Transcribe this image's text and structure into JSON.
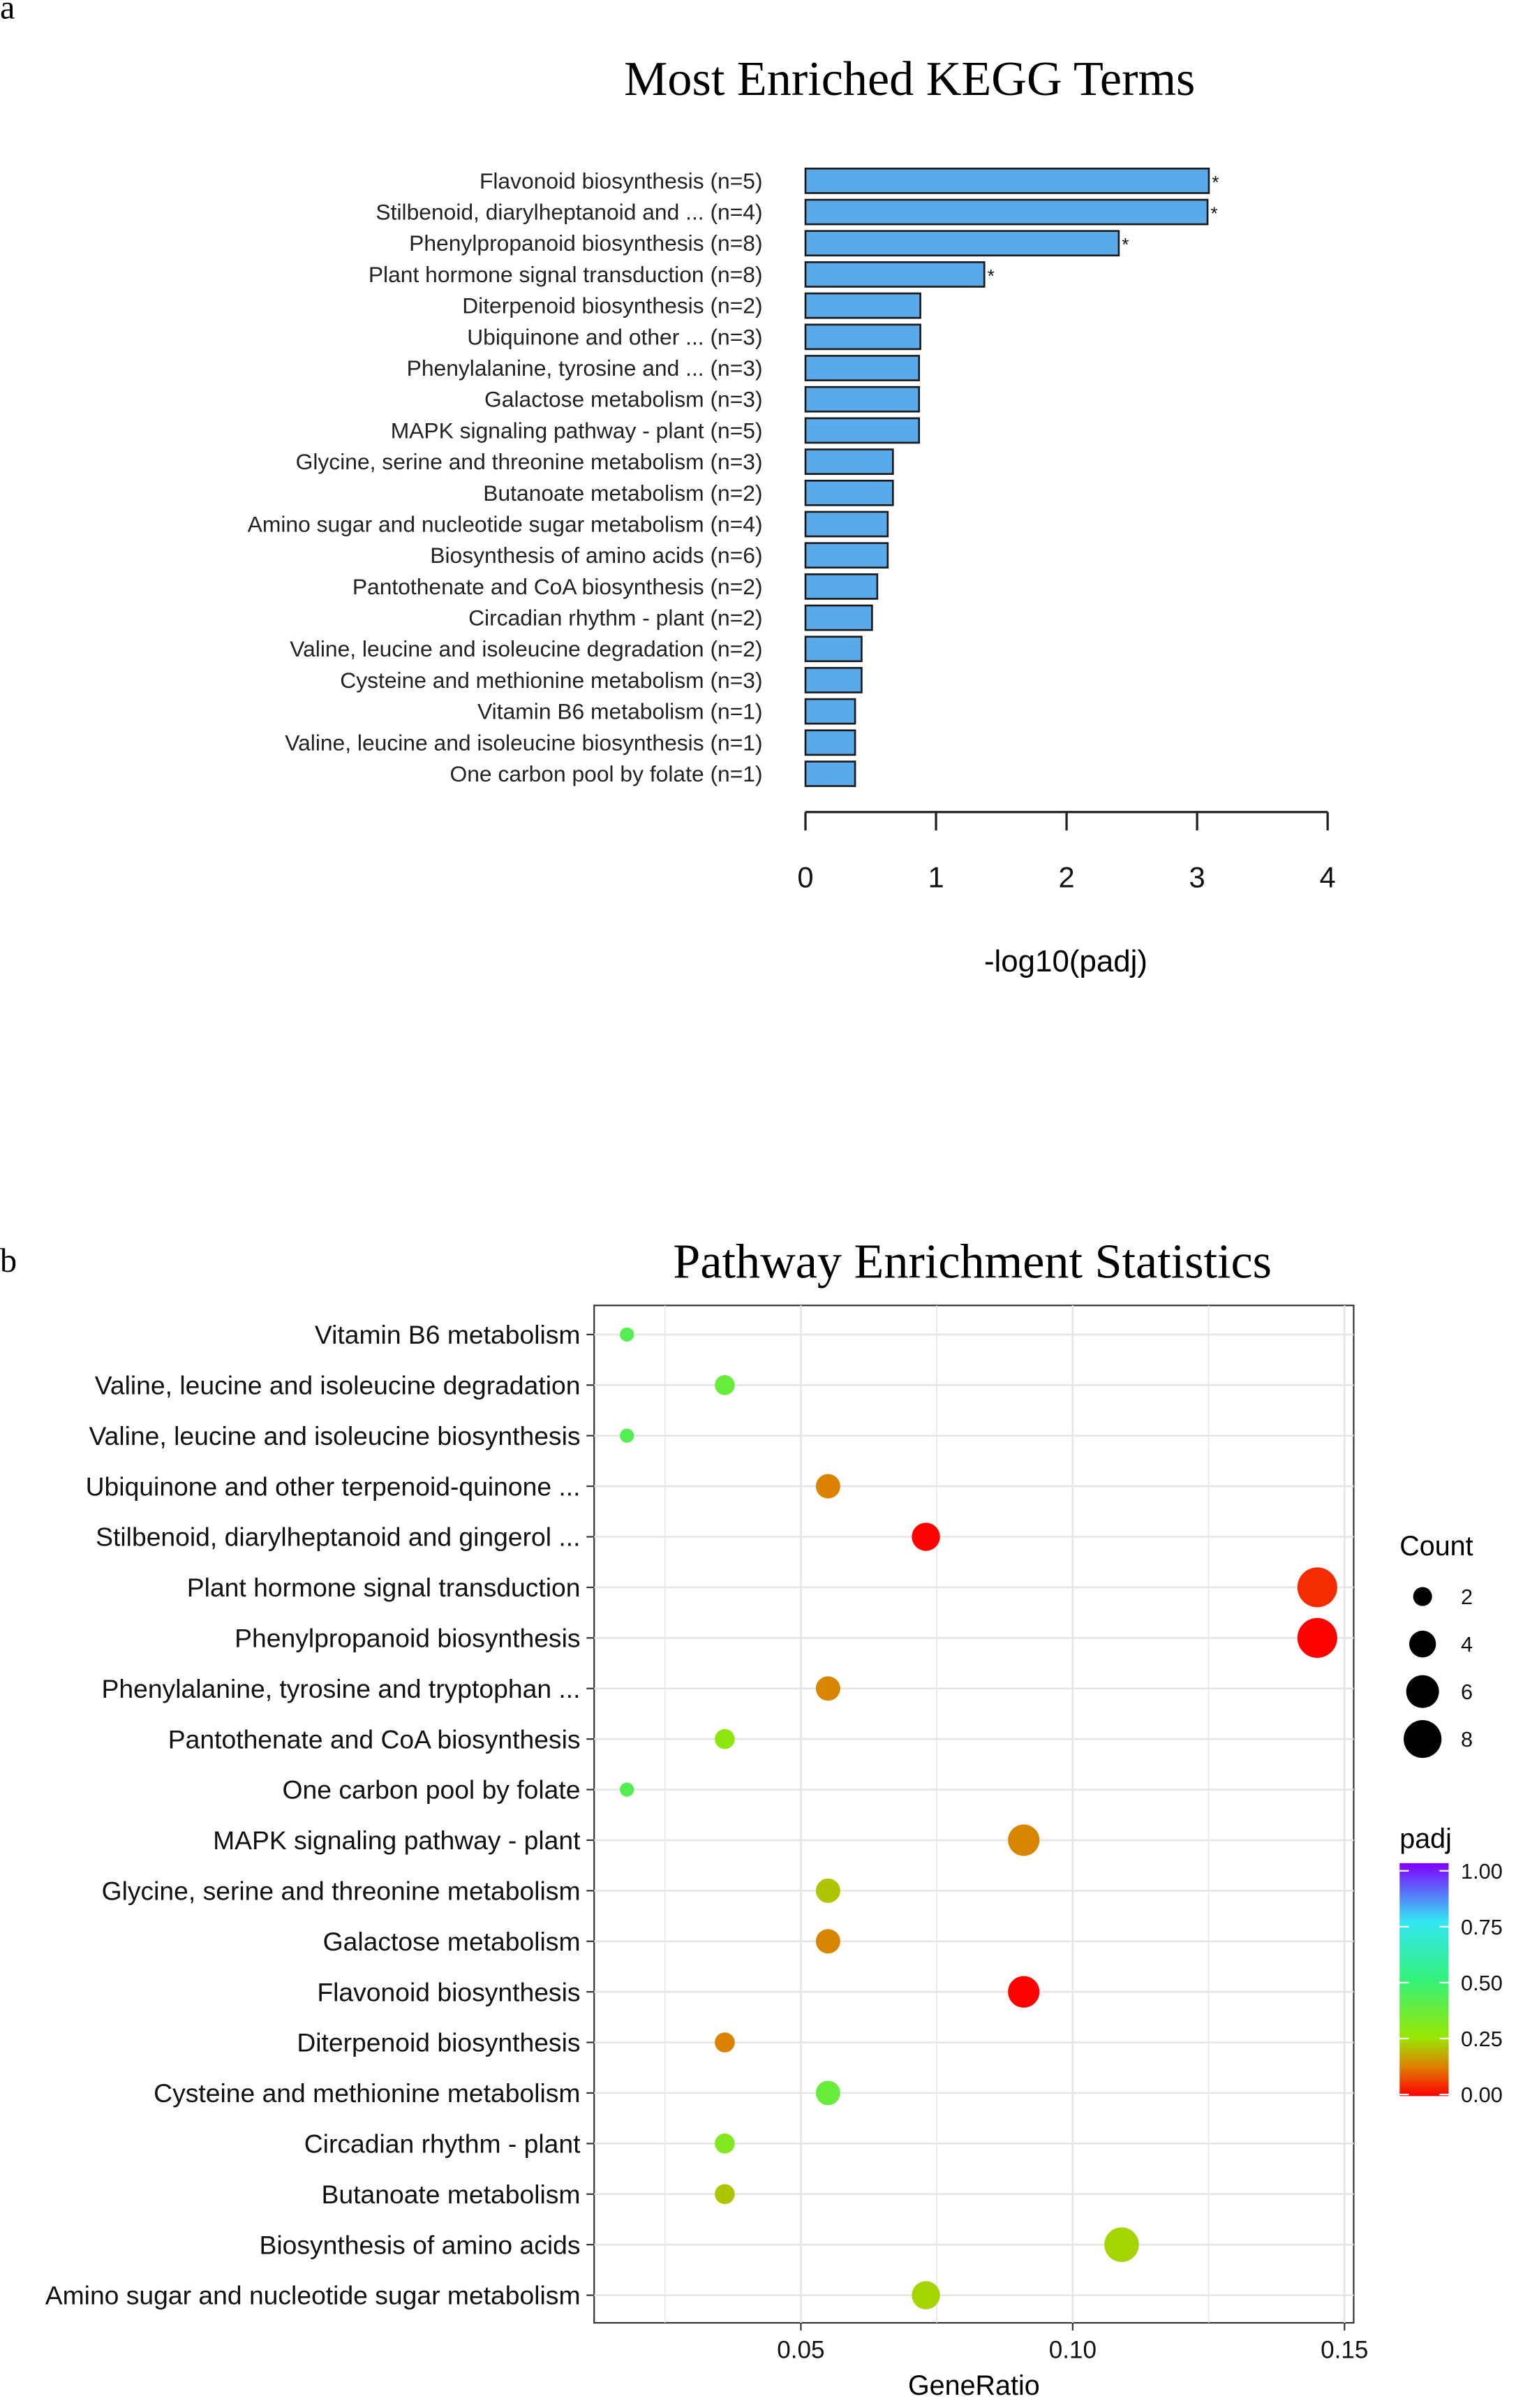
{
  "chart_data": [
    {
      "type": "bar",
      "panel_label": "a",
      "title": "Most Enriched KEGG Terms",
      "xlabel": "-log10(padj)",
      "ylabel": "",
      "xlim": [
        0,
        4
      ],
      "xticks": [
        "0",
        "1",
        "2",
        "3",
        "4"
      ],
      "orientation": "horizontal",
      "bar_color": "#5aa9ea",
      "categories": [
        "Flavonoid biosynthesis (n=5)",
        "Stilbenoid, diarylheptanoid and ... (n=4)",
        "Phenylpropanoid biosynthesis (n=8)",
        "Plant hormone signal transduction (n=8)",
        "Diterpenoid biosynthesis (n=2)",
        "Ubiquinone and other ... (n=3)",
        "Phenylalanine, tyrosine and ... (n=3)",
        "Galactose metabolism (n=3)",
        "MAPK signaling pathway - plant (n=5)",
        "Glycine, serine and threonine metabolism (n=3)",
        "Butanoate metabolism (n=2)",
        "Amino sugar and nucleotide sugar metabolism (n=4)",
        "Biosynthesis of amino acids (n=6)",
        "Pantothenate and CoA biosynthesis (n=2)",
        "Circadian rhythm - plant (n=2)",
        "Valine, leucine and isoleucine degradation (n=2)",
        "Cysteine and methionine metabolism (n=3)",
        "Vitamin B6 metabolism (n=1)",
        "Valine, leucine and isoleucine biosynthesis (n=1)",
        "One carbon pool by folate (n=1)"
      ],
      "values": [
        3.09,
        3.08,
        2.4,
        1.37,
        0.88,
        0.88,
        0.87,
        0.87,
        0.87,
        0.67,
        0.67,
        0.63,
        0.63,
        0.55,
        0.51,
        0.43,
        0.43,
        0.38,
        0.38,
        0.38
      ],
      "significant": [
        true,
        true,
        true,
        true,
        false,
        false,
        false,
        false,
        false,
        false,
        false,
        false,
        false,
        false,
        false,
        false,
        false,
        false,
        false,
        false
      ],
      "significance_mark": "*"
    },
    {
      "type": "scatter",
      "panel_label": "b",
      "title": "Pathway Enrichment Statistics",
      "xlabel": "GeneRatio",
      "ylabel": "",
      "xlim": [
        0.011,
        0.152
      ],
      "xticks": [
        "0.05",
        "0.10",
        "0.15"
      ],
      "xtick_values": [
        0.05,
        0.1,
        0.15
      ],
      "grid": true,
      "categories": [
        "Vitamin B6 metabolism",
        "Valine, leucine and isoleucine degradation",
        "Valine, leucine and isoleucine biosynthesis",
        "Ubiquinone and other terpenoid-quinone ...",
        "Stilbenoid, diarylheptanoid and gingerol ...",
        "Plant hormone signal transduction",
        "Phenylpropanoid biosynthesis",
        "Phenylalanine, tyrosine and tryptophan ...",
        "Pantothenate and CoA biosynthesis",
        "One carbon pool by folate",
        "MAPK signaling pathway - plant",
        "Glycine, serine and threonine metabolism",
        "Galactose metabolism",
        "Flavonoid biosynthesis",
        "Diterpenoid biosynthesis",
        "Cysteine and methionine metabolism",
        "Circadian rhythm - plant",
        "Butanoate metabolism",
        "Biosynthesis of amino acids",
        "Amino sugar and nucleotide sugar metabolism"
      ],
      "gene_ratio": [
        0.018,
        0.036,
        0.018,
        0.055,
        0.073,
        0.145,
        0.145,
        0.055,
        0.036,
        0.018,
        0.091,
        0.055,
        0.055,
        0.091,
        0.036,
        0.055,
        0.036,
        0.036,
        0.109,
        0.073
      ],
      "count": [
        1,
        2,
        1,
        3,
        4,
        8,
        8,
        3,
        2,
        1,
        5,
        3,
        3,
        5,
        2,
        3,
        2,
        2,
        6,
        4
      ],
      "padj": [
        0.42,
        0.37,
        0.42,
        0.13,
        0.001,
        0.043,
        0.004,
        0.135,
        0.28,
        0.42,
        0.135,
        0.21,
        0.135,
        0.001,
        0.13,
        0.37,
        0.31,
        0.21,
        0.23,
        0.23
      ],
      "legend": {
        "size_title": "Count",
        "size_labels": [
          "2",
          "4",
          "6",
          "8"
        ],
        "size_values": [
          2,
          4,
          6,
          8
        ],
        "color_title": "padj",
        "color_labels": [
          "1.00",
          "0.75",
          "0.50",
          "0.25",
          "0.00"
        ],
        "color_stops": {
          "0.00": "#ff0000",
          "0.12": "#e07a00",
          "0.25": "#99e600",
          "0.50": "#33f27a",
          "0.75": "#33e6f2",
          "1.00": "#8000ff"
        },
        "placement": "right"
      }
    }
  ]
}
